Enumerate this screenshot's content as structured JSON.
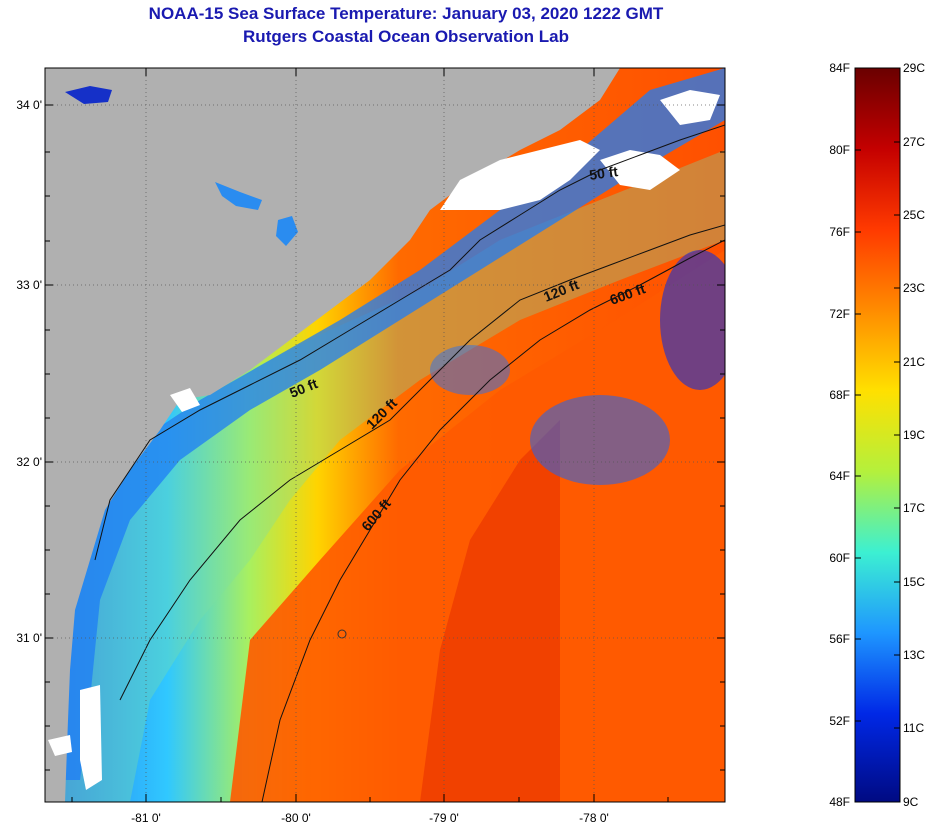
{
  "title": "NOAA-15 Sea Surface Temperature:  January 03, 2020 1222 GMT",
  "subtitle": "Rutgers Coastal Ocean Observation Lab",
  "map": {
    "lat_ticks": [
      "34 0'",
      "33 0'",
      "32 0'",
      "31 0'"
    ],
    "lon_ticks": [
      "-81 0'",
      "-80 0'",
      "-79 0'",
      "-78 0'"
    ],
    "contours": [
      {
        "label": "50 ft"
      },
      {
        "label": "50 ft"
      },
      {
        "label": "120 ft"
      },
      {
        "label": "120 ft"
      },
      {
        "label": "600 ft"
      },
      {
        "label": "600 ft"
      }
    ],
    "land_color": "#b0b0b0",
    "cloud_color": "#ffffff"
  },
  "colorbar": {
    "fahrenheit_ticks": [
      "84F",
      "80F",
      "76F",
      "72F",
      "68F",
      "64F",
      "60F",
      "56F",
      "52F",
      "48F"
    ],
    "celsius_ticks": [
      "29C",
      "27C",
      "25C",
      "23C",
      "21C",
      "19C",
      "17C",
      "15C",
      "13C",
      "11C",
      "9C"
    ],
    "colors": [
      "#6a0000",
      "#c40000",
      "#ff3a00",
      "#ff8c00",
      "#ffe000",
      "#b4f03c",
      "#3cf0d2",
      "#1e96ff",
      "#0028e6",
      "#000a82"
    ]
  }
}
